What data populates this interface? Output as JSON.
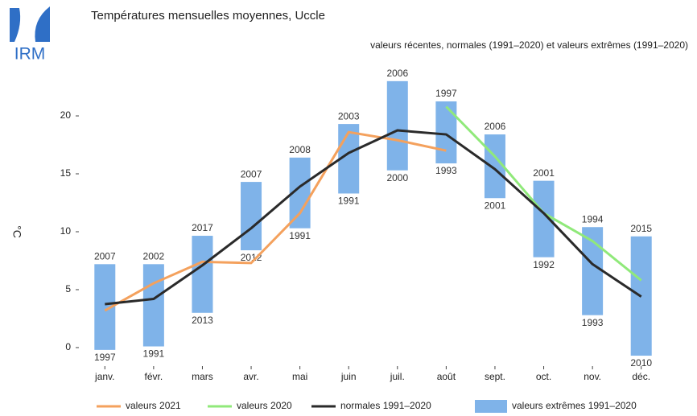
{
  "logo": "IRM",
  "chart_data": {
    "type": "line",
    "title": "Températures mensuelles moyennes, Uccle",
    "subtitle": "valeurs récentes, normales (1991–2020) et valeurs extrêmes (1991–2020)",
    "y_label": "°C",
    "categories": [
      "janv.",
      "févr.",
      "mars",
      "avr.",
      "mai",
      "juin",
      "juil.",
      "août",
      "sept.",
      "oct.",
      "nov.",
      "déc."
    ],
    "ylim": [
      -1.6,
      24.1
    ],
    "yticks": [
      0,
      5,
      10,
      15,
      20
    ],
    "series": [
      {
        "name": "valeurs 2021",
        "color": "#f4a15d",
        "values": [
          3.2,
          5.55,
          7.4,
          7.3,
          11.6,
          18.6,
          17.9,
          17.0,
          null,
          null,
          null,
          null
        ]
      },
      {
        "name": "valeurs 2020",
        "color": "#90e97a",
        "values": [
          null,
          null,
          null,
          null,
          null,
          null,
          null,
          20.8,
          16.5,
          11.6,
          9.2,
          5.8
        ]
      },
      {
        "name": "normales 1991–2020",
        "color": "#2a2a2a",
        "values": [
          3.75,
          4.2,
          7.1,
          10.3,
          13.9,
          16.8,
          18.75,
          18.4,
          15.4,
          11.6,
          7.2,
          4.4
        ]
      }
    ],
    "extremes": {
      "name": "valeurs extrêmes 1991–2020",
      "color": "#7fb3e9",
      "low": [
        -0.2,
        0.1,
        3.0,
        8.4,
        10.3,
        13.3,
        15.3,
        15.9,
        12.9,
        7.8,
        2.8,
        -0.7
      ],
      "high": [
        7.2,
        7.2,
        9.65,
        14.3,
        16.4,
        19.3,
        23.0,
        21.25,
        18.4,
        14.4,
        10.4,
        9.6
      ],
      "low_year": [
        1997,
        1991,
        2013,
        2012,
        1991,
        1991,
        2000,
        1993,
        2001,
        1992,
        1993,
        2010
      ],
      "high_year": [
        2007,
        2002,
        2017,
        2007,
        2008,
        2003,
        2006,
        1997,
        2006,
        2001,
        1994,
        2015
      ]
    }
  }
}
